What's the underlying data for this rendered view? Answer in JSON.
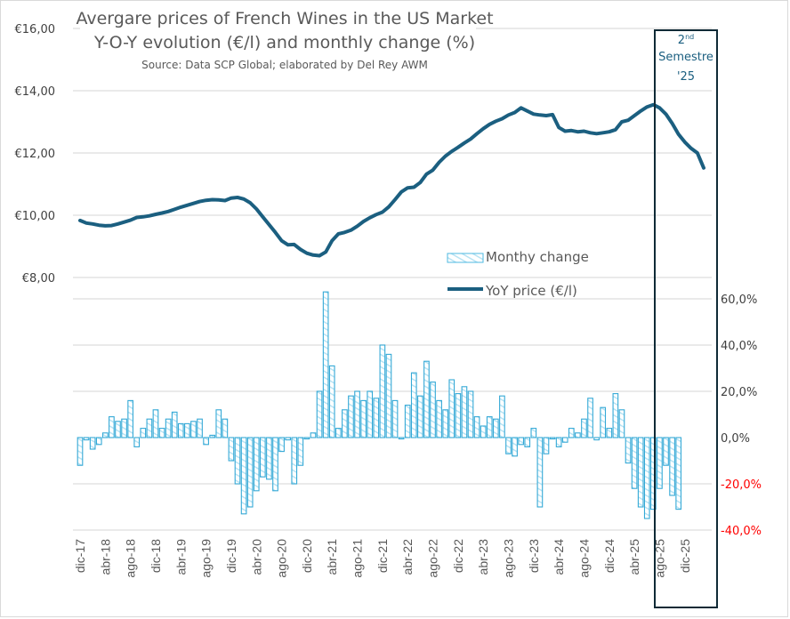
{
  "chart_data": {
    "type": "bar+line",
    "title": "Avergare prices of French Wines in the US Market",
    "subtitle": "Y-O-Y evolution  (€/l) and monthly change (%)",
    "source": "Source: Data SCP Global;  elaborated  by Del Rey AWM",
    "highlight": {
      "label_line1": "2",
      "label_sup": "nd",
      "label_line2": "Semestre",
      "label_line3": "'25",
      "start": "may-25",
      "end": "dic-25"
    },
    "left_axis": {
      "label": "YoY price (€/l)",
      "ticks": [
        "€16,00",
        "€14,00",
        "€12,00",
        "€10,00",
        "€8,00"
      ],
      "tick_values": [
        16,
        14,
        12,
        10,
        8
      ],
      "range": [
        8,
        16
      ]
    },
    "right_axis": {
      "label": "Monthly change (%)",
      "ticks": [
        "60,0%",
        "40,0%",
        "20,0%",
        "0,0%",
        "-20,0%",
        "-40,0%"
      ],
      "tick_values": [
        60,
        40,
        20,
        0,
        -20,
        -40
      ],
      "range": [
        -40,
        60
      ],
      "negative_color": "#ff0000"
    },
    "x_tick_labels": [
      "dic-17",
      "abr-18",
      "ago-18",
      "dic-18",
      "abr-19",
      "ago-19",
      "dic-19",
      "abr-20",
      "ago-20",
      "dic-20",
      "abr-21",
      "ago-21",
      "dic-21",
      "abr-22",
      "ago-22",
      "dic-22",
      "abr-23",
      "ago-23",
      "dic-23",
      "abr-24",
      "ago-24",
      "dic-24",
      "abr-25",
      "ago-25",
      "dic-25"
    ],
    "x_start": "dic-17",
    "x_end": "dic-25",
    "legend": [
      {
        "name": "Monthy change",
        "type": "bar",
        "color": "#4db8e0"
      },
      {
        "name": "YoY price  (€/l)",
        "type": "line",
        "color": "#1b5f80"
      }
    ],
    "legend_position": "center",
    "series": [
      {
        "name": "YoY price  (€/l)",
        "type": "line",
        "color": "#1b5f80",
        "values": [
          9.83,
          9.75,
          9.72,
          9.68,
          9.66,
          9.67,
          9.72,
          9.78,
          9.84,
          9.93,
          9.95,
          9.98,
          10.03,
          10.07,
          10.12,
          10.19,
          10.26,
          10.32,
          10.38,
          10.44,
          10.48,
          10.5,
          10.49,
          10.47,
          10.55,
          10.57,
          10.52,
          10.4,
          10.2,
          9.95,
          9.7,
          9.45,
          9.18,
          9.05,
          9.06,
          8.9,
          8.78,
          8.72,
          8.7,
          8.82,
          9.18,
          9.4,
          9.45,
          9.52,
          9.65,
          9.8,
          9.92,
          10.02,
          10.1,
          10.27,
          10.5,
          10.75,
          10.88,
          10.9,
          11.05,
          11.32,
          11.45,
          11.7,
          11.9,
          12.05,
          12.18,
          12.32,
          12.45,
          12.62,
          12.78,
          12.92,
          13.02,
          13.1,
          13.22,
          13.3,
          13.45,
          13.35,
          13.25,
          13.22,
          13.2,
          13.23,
          12.82,
          12.7,
          12.72,
          12.68,
          12.7,
          12.65,
          12.62,
          12.65,
          12.68,
          12.75,
          13.0,
          13.05,
          13.2,
          13.35,
          13.48,
          13.55,
          13.45,
          13.25,
          12.95,
          12.6,
          12.35,
          12.15,
          12.0,
          11.52
        ]
      },
      {
        "name": "Monthy change",
        "type": "bar",
        "color": "#4db8e0",
        "values": [
          -12,
          -1,
          -5,
          -3,
          2,
          9,
          7,
          8,
          16,
          -4,
          4,
          8,
          12,
          4,
          8,
          11,
          6,
          6,
          7,
          8,
          -3,
          1,
          12,
          8,
          -10,
          -20,
          -33,
          -30,
          -23,
          -17,
          -18,
          -23,
          -6,
          -1,
          -20,
          -12,
          0,
          2,
          20,
          63,
          31,
          4,
          12,
          18,
          20,
          16,
          20,
          17,
          40,
          36,
          16,
          0,
          14,
          28,
          18,
          33,
          24,
          16,
          12,
          25,
          19,
          22,
          20,
          9,
          5,
          9,
          8,
          18,
          -7,
          -8,
          -3,
          -4,
          4,
          -30,
          -7,
          0,
          -4,
          -2,
          4,
          2,
          8,
          17,
          -1,
          13,
          4,
          19,
          12,
          -11,
          -22,
          -30,
          -35,
          -31,
          -22,
          -12,
          -25,
          -31
        ]
      }
    ]
  }
}
